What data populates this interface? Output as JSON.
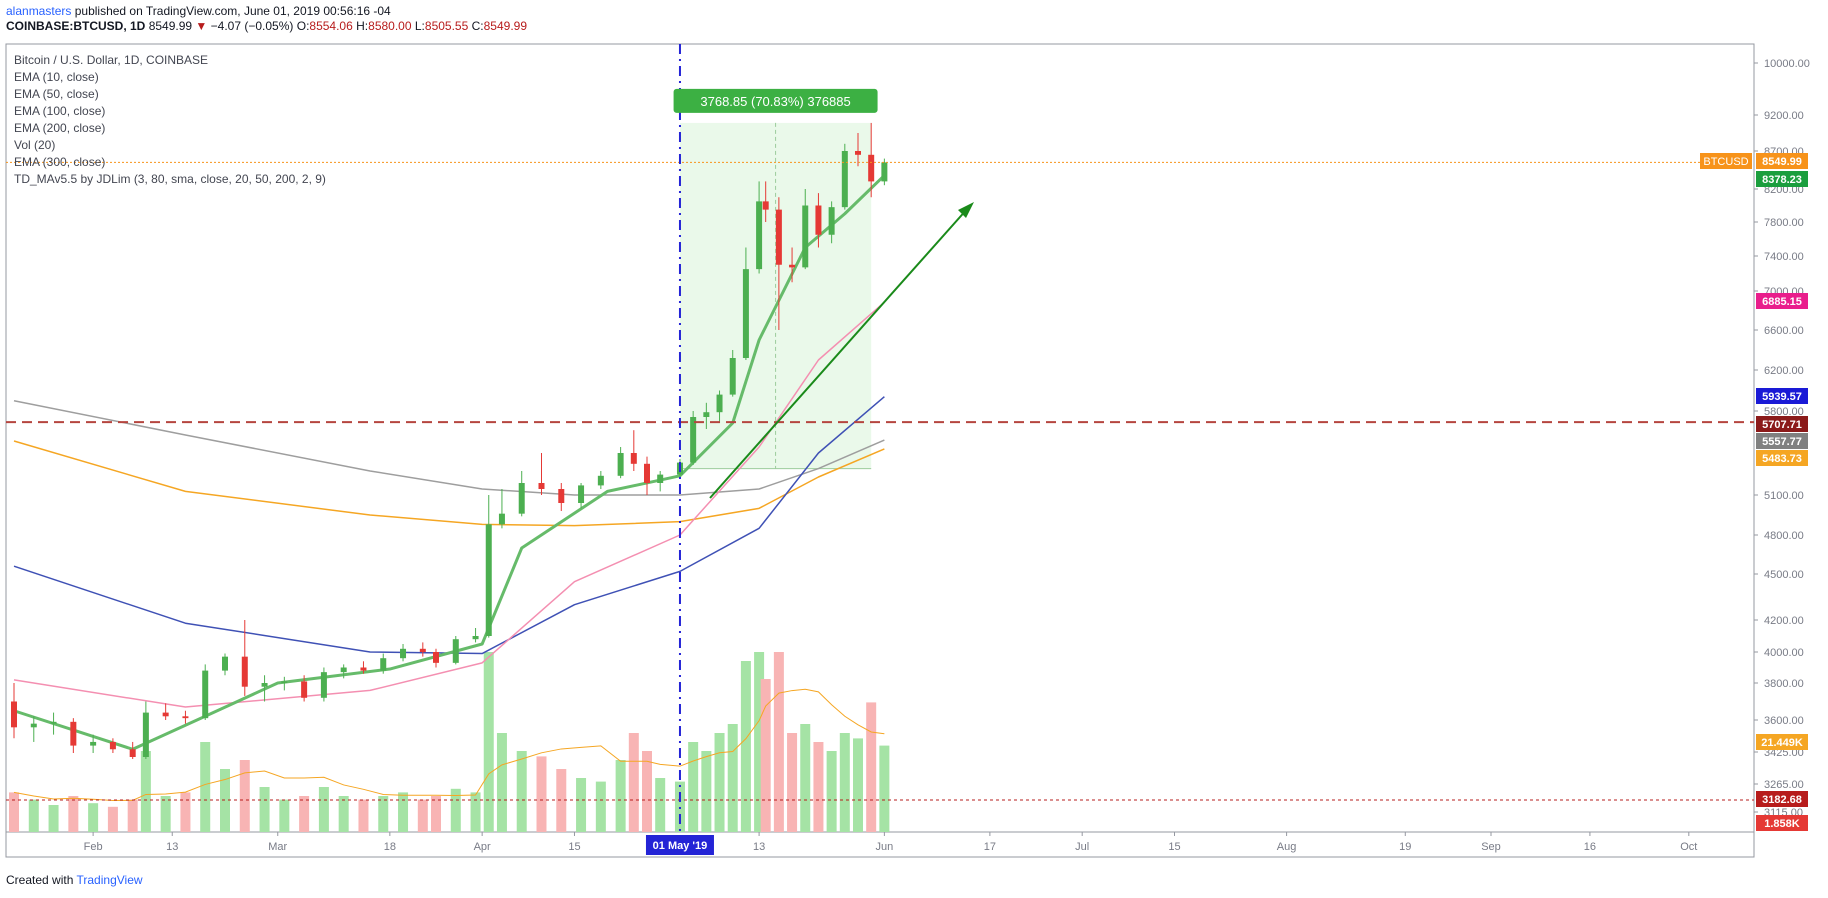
{
  "header": {
    "author": "alanmasters",
    "published_text": "published on TradingView.com, June 01, 2019 00:56:16 -04",
    "symbol": "COINBASE:BTCUSD, 1D",
    "last": "8549.99",
    "change": "−4.07 (−0.05%)",
    "o_label": "O:",
    "o": "8554.06",
    "h_label": "H:",
    "h": "8580.00",
    "l_label": "L:",
    "l": "8505.55",
    "c_label": "C:",
    "c": "8549.99"
  },
  "legend": [
    "Bitcoin / U.S. Dollar, 1D, COINBASE",
    "EMA (10, close)",
    "EMA (50, close)",
    "EMA (100, close)",
    "EMA (200, close)",
    "Vol (20)",
    "EMA (300, close)",
    "TD_MAv5.5 by JDLim (3, 80, sma, close, 20, 50, 200, 2, 9)"
  ],
  "footer": {
    "created_with": "Created with",
    "brand": "TradingView"
  },
  "colors": {
    "up": "#26a69a",
    "candle_up": "#4caf50",
    "candle_down": "#e53935",
    "ema10": "#66bb6a",
    "ema50": "#f48fb1",
    "ema100": "#3f51b5",
    "ema200": "#f5a623",
    "ema300": "#9e9e9e",
    "vol_up": "#a5e3a5",
    "vol_down": "#f8b4b4"
  },
  "chart_data": {
    "type": "candlestick",
    "y_axis_ticks": [
      10000,
      9200,
      8700,
      8200,
      7800,
      7400,
      7000,
      6600,
      6200,
      5800,
      5100,
      4800,
      4500,
      4200,
      4000,
      3800,
      3600,
      3425,
      3265,
      3115
    ],
    "y_axis_tick_labels": [
      "10000.00",
      "9200.00",
      "8700.00",
      "8200.00",
      "7800.00",
      "7400.00",
      "7000.00",
      "6600.00",
      "6200.00",
      "5800.00",
      "5100.00",
      "4800.00",
      "4500.00",
      "4200.00",
      "4000.00",
      "3800.00",
      "3600.00",
      "3425.00",
      "3265.00",
      "3115.00"
    ],
    "x_axis_ticks": [
      {
        "label": "Feb",
        "date": "2019-02-01"
      },
      {
        "label": "13",
        "date": "2019-02-13"
      },
      {
        "label": "Mar",
        "date": "2019-03-01"
      },
      {
        "label": "18",
        "date": "2019-03-18"
      },
      {
        "label": "Apr",
        "date": "2019-04-01"
      },
      {
        "label": "15",
        "date": "2019-04-15"
      },
      {
        "label": "13",
        "date": "2019-05-13"
      },
      {
        "label": "Jun",
        "date": "2019-06-01"
      },
      {
        "label": "17",
        "date": "2019-06-17"
      },
      {
        "label": "Jul",
        "date": "2019-07-01"
      },
      {
        "label": "15",
        "date": "2019-07-15"
      },
      {
        "label": "Aug",
        "date": "2019-08-01"
      },
      {
        "label": "19",
        "date": "2019-08-19"
      },
      {
        "label": "Sep",
        "date": "2019-09-01"
      },
      {
        "label": "16",
        "date": "2019-09-16"
      },
      {
        "label": "Oct",
        "date": "2019-10-01"
      }
    ],
    "x_range": [
      "2019-01-20",
      "2019-10-03"
    ],
    "highlight_date": {
      "label": "01 May '19",
      "date": "2019-05-01"
    },
    "price_labels": [
      {
        "text": "BTCUSD",
        "value": "8549.99",
        "price": 8549.99,
        "color": "#f7931a"
      },
      {
        "text": "",
        "value": "8378.23",
        "price": 8378.23,
        "color": "#1b9e3e"
      },
      {
        "text": "",
        "value": "6885.15",
        "price": 6885.15,
        "color": "#e91e8c"
      },
      {
        "text": "",
        "value": "5939.57",
        "price": 5939.57,
        "color": "#1a1ad6"
      },
      {
        "text": "",
        "value": "5707.71",
        "price": 5707.71,
        "color": "#8b1a1a"
      },
      {
        "text": "",
        "value": "5557.77",
        "price": 5557.77,
        "color": "#808080"
      },
      {
        "text": "",
        "value": "5483.73",
        "price": 5483.73,
        "color": "#f5a623"
      },
      {
        "text": "",
        "value": "21.449K",
        "price": 3490,
        "color": "#f5a623"
      },
      {
        "text": "",
        "value": "3182.68",
        "price": 3182.68,
        "color": "#b71c1c"
      },
      {
        "text": "",
        "value": "1.858K",
        "price": 3040,
        "color": "#e53935"
      }
    ],
    "measure": {
      "text": "3768.85 (70.83%) 376885",
      "from_date": "2019-05-01",
      "to_date": "2019-05-30",
      "from_price": 5320,
      "to_price": 9090
    },
    "support_line": 5707.71,
    "dotted_line": 3182.68,
    "last_price": 8549.99,
    "candles": [
      {
        "d": "2019-01-20",
        "o": 3700,
        "h": 3800,
        "l": 3500,
        "c": 3560
      },
      {
        "d": "2019-01-23",
        "o": 3560,
        "h": 3620,
        "l": 3480,
        "c": 3580
      },
      {
        "d": "2019-01-26",
        "o": 3580,
        "h": 3640,
        "l": 3520,
        "c": 3590
      },
      {
        "d": "2019-01-29",
        "o": 3590,
        "h": 3610,
        "l": 3420,
        "c": 3460
      },
      {
        "d": "2019-02-01",
        "o": 3460,
        "h": 3520,
        "l": 3420,
        "c": 3480
      },
      {
        "d": "2019-02-04",
        "o": 3480,
        "h": 3500,
        "l": 3420,
        "c": 3440
      },
      {
        "d": "2019-02-07",
        "o": 3440,
        "h": 3480,
        "l": 3390,
        "c": 3400
      },
      {
        "d": "2019-02-09",
        "o": 3400,
        "h": 3700,
        "l": 3390,
        "c": 3640
      },
      {
        "d": "2019-02-12",
        "o": 3640,
        "h": 3690,
        "l": 3600,
        "c": 3620
      },
      {
        "d": "2019-02-15",
        "o": 3620,
        "h": 3650,
        "l": 3580,
        "c": 3610
      },
      {
        "d": "2019-02-18",
        "o": 3610,
        "h": 3920,
        "l": 3600,
        "c": 3880
      },
      {
        "d": "2019-02-21",
        "o": 3880,
        "h": 3990,
        "l": 3850,
        "c": 3970
      },
      {
        "d": "2019-02-24",
        "o": 3970,
        "h": 4200,
        "l": 3730,
        "c": 3780
      },
      {
        "d": "2019-02-27",
        "o": 3780,
        "h": 3850,
        "l": 3700,
        "c": 3800
      },
      {
        "d": "2019-03-02",
        "o": 3800,
        "h": 3840,
        "l": 3760,
        "c": 3810
      },
      {
        "d": "2019-03-05",
        "o": 3810,
        "h": 3850,
        "l": 3700,
        "c": 3720
      },
      {
        "d": "2019-03-08",
        "o": 3720,
        "h": 3900,
        "l": 3700,
        "c": 3870
      },
      {
        "d": "2019-03-11",
        "o": 3870,
        "h": 3920,
        "l": 3830,
        "c": 3900
      },
      {
        "d": "2019-03-14",
        "o": 3900,
        "h": 3940,
        "l": 3860,
        "c": 3880
      },
      {
        "d": "2019-03-17",
        "o": 3880,
        "h": 3990,
        "l": 3860,
        "c": 3960
      },
      {
        "d": "2019-03-20",
        "o": 3960,
        "h": 4050,
        "l": 3940,
        "c": 4020
      },
      {
        "d": "2019-03-23",
        "o": 4020,
        "h": 4060,
        "l": 3970,
        "c": 4000
      },
      {
        "d": "2019-03-25",
        "o": 4000,
        "h": 4020,
        "l": 3900,
        "c": 3930
      },
      {
        "d": "2019-03-28",
        "o": 3930,
        "h": 4100,
        "l": 3920,
        "c": 4080
      },
      {
        "d": "2019-03-31",
        "o": 4080,
        "h": 4150,
        "l": 4060,
        "c": 4100
      },
      {
        "d": "2019-04-02",
        "o": 4100,
        "h": 5100,
        "l": 4090,
        "c": 4880
      },
      {
        "d": "2019-04-04",
        "o": 4880,
        "h": 5150,
        "l": 4850,
        "c": 4960
      },
      {
        "d": "2019-04-07",
        "o": 4960,
        "h": 5300,
        "l": 4940,
        "c": 5200
      },
      {
        "d": "2019-04-10",
        "o": 5200,
        "h": 5450,
        "l": 5100,
        "c": 5150
      },
      {
        "d": "2019-04-13",
        "o": 5150,
        "h": 5200,
        "l": 4980,
        "c": 5040
      },
      {
        "d": "2019-04-16",
        "o": 5040,
        "h": 5200,
        "l": 5000,
        "c": 5180
      },
      {
        "d": "2019-04-19",
        "o": 5180,
        "h": 5300,
        "l": 5150,
        "c": 5260
      },
      {
        "d": "2019-04-22",
        "o": 5260,
        "h": 5500,
        "l": 5240,
        "c": 5450
      },
      {
        "d": "2019-04-24",
        "o": 5450,
        "h": 5640,
        "l": 5300,
        "c": 5360
      },
      {
        "d": "2019-04-26",
        "o": 5360,
        "h": 5420,
        "l": 5100,
        "c": 5200
      },
      {
        "d": "2019-04-28",
        "o": 5200,
        "h": 5300,
        "l": 5130,
        "c": 5270
      },
      {
        "d": "2019-05-01",
        "o": 5270,
        "h": 5400,
        "l": 5250,
        "c": 5370
      },
      {
        "d": "2019-05-03",
        "o": 5370,
        "h": 5800,
        "l": 5350,
        "c": 5750
      },
      {
        "d": "2019-05-05",
        "o": 5750,
        "h": 5880,
        "l": 5650,
        "c": 5790
      },
      {
        "d": "2019-05-07",
        "o": 5790,
        "h": 6000,
        "l": 5700,
        "c": 5960
      },
      {
        "d": "2019-05-09",
        "o": 5960,
        "h": 6400,
        "l": 5940,
        "c": 6320
      },
      {
        "d": "2019-05-11",
        "o": 6320,
        "h": 7500,
        "l": 6300,
        "c": 7250
      },
      {
        "d": "2019-05-13",
        "o": 7250,
        "h": 8300,
        "l": 7200,
        "c": 8050
      },
      {
        "d": "2019-05-14",
        "o": 8050,
        "h": 8300,
        "l": 7800,
        "c": 7950
      },
      {
        "d": "2019-05-16",
        "o": 7950,
        "h": 8100,
        "l": 6600,
        "c": 7300
      },
      {
        "d": "2019-05-18",
        "o": 7300,
        "h": 7500,
        "l": 7100,
        "c": 7270
      },
      {
        "d": "2019-05-20",
        "o": 7270,
        "h": 8200,
        "l": 7250,
        "c": 8000
      },
      {
        "d": "2019-05-22",
        "o": 8000,
        "h": 8150,
        "l": 7500,
        "c": 7650
      },
      {
        "d": "2019-05-24",
        "o": 7650,
        "h": 8050,
        "l": 7550,
        "c": 7980
      },
      {
        "d": "2019-05-26",
        "o": 7980,
        "h": 8800,
        "l": 7950,
        "c": 8700
      },
      {
        "d": "2019-05-28",
        "o": 8700,
        "h": 8950,
        "l": 8500,
        "c": 8650
      },
      {
        "d": "2019-05-30",
        "o": 8650,
        "h": 9090,
        "l": 8100,
        "c": 8300
      },
      {
        "d": "2019-06-01",
        "o": 8300,
        "h": 8600,
        "l": 8250,
        "c": 8550
      }
    ],
    "ema10": [
      [
        "2019-01-20",
        3650
      ],
      [
        "2019-02-07",
        3440
      ],
      [
        "2019-02-18",
        3620
      ],
      [
        "2019-03-01",
        3800
      ],
      [
        "2019-03-18",
        3890
      ],
      [
        "2019-04-01",
        4050
      ],
      [
        "2019-04-07",
        4700
      ],
      [
        "2019-04-20",
        5130
      ],
      [
        "2019-05-01",
        5260
      ],
      [
        "2019-05-09",
        5700
      ],
      [
        "2019-05-13",
        6500
      ],
      [
        "2019-05-20",
        7500
      ],
      [
        "2019-05-26",
        7900
      ],
      [
        "2019-06-01",
        8378
      ]
    ],
    "ema50": [
      [
        "2019-01-20",
        3820
      ],
      [
        "2019-02-15",
        3670
      ],
      [
        "2019-03-15",
        3760
      ],
      [
        "2019-04-01",
        3930
      ],
      [
        "2019-04-15",
        4450
      ],
      [
        "2019-05-01",
        4800
      ],
      [
        "2019-05-13",
        5500
      ],
      [
        "2019-05-22",
        6300
      ],
      [
        "2019-06-01",
        6885
      ]
    ],
    "ema100": [
      [
        "2019-01-20",
        4560
      ],
      [
        "2019-02-15",
        4180
      ],
      [
        "2019-03-15",
        4000
      ],
      [
        "2019-04-01",
        3990
      ],
      [
        "2019-04-15",
        4300
      ],
      [
        "2019-05-01",
        4520
      ],
      [
        "2019-05-13",
        4850
      ],
      [
        "2019-05-22",
        5450
      ],
      [
        "2019-06-01",
        5940
      ]
    ],
    "ema200": [
      [
        "2019-01-20",
        5550
      ],
      [
        "2019-02-15",
        5130
      ],
      [
        "2019-03-15",
        4950
      ],
      [
        "2019-04-01",
        4880
      ],
      [
        "2019-04-15",
        4870
      ],
      [
        "2019-05-01",
        4900
      ],
      [
        "2019-05-13",
        5000
      ],
      [
        "2019-05-22",
        5250
      ],
      [
        "2019-06-01",
        5484
      ]
    ],
    "ema300": [
      [
        "2019-01-20",
        5900
      ],
      [
        "2019-02-15",
        5600
      ],
      [
        "2019-03-15",
        5300
      ],
      [
        "2019-04-01",
        5150
      ],
      [
        "2019-04-15",
        5100
      ],
      [
        "2019-05-01",
        5100
      ],
      [
        "2019-05-13",
        5150
      ],
      [
        "2019-05-22",
        5320
      ],
      [
        "2019-06-01",
        5558
      ]
    ],
    "volume": [
      {
        "d": "2019-01-20",
        "v": 0.22,
        "up": false
      },
      {
        "d": "2019-01-23",
        "v": 0.18,
        "up": true
      },
      {
        "d": "2019-01-26",
        "v": 0.15,
        "up": true
      },
      {
        "d": "2019-01-29",
        "v": 0.2,
        "up": false
      },
      {
        "d": "2019-02-01",
        "v": 0.16,
        "up": true
      },
      {
        "d": "2019-02-04",
        "v": 0.14,
        "up": false
      },
      {
        "d": "2019-02-07",
        "v": 0.18,
        "up": false
      },
      {
        "d": "2019-02-09",
        "v": 0.45,
        "up": true
      },
      {
        "d": "2019-02-12",
        "v": 0.2,
        "up": true
      },
      {
        "d": "2019-02-15",
        "v": 0.22,
        "up": false
      },
      {
        "d": "2019-02-18",
        "v": 0.5,
        "up": true
      },
      {
        "d": "2019-02-21",
        "v": 0.35,
        "up": true
      },
      {
        "d": "2019-02-24",
        "v": 0.4,
        "up": false
      },
      {
        "d": "2019-02-27",
        "v": 0.25,
        "up": true
      },
      {
        "d": "2019-03-02",
        "v": 0.18,
        "up": true
      },
      {
        "d": "2019-03-05",
        "v": 0.2,
        "up": false
      },
      {
        "d": "2019-03-08",
        "v": 0.25,
        "up": true
      },
      {
        "d": "2019-03-11",
        "v": 0.2,
        "up": true
      },
      {
        "d": "2019-03-14",
        "v": 0.18,
        "up": false
      },
      {
        "d": "2019-03-17",
        "v": 0.2,
        "up": true
      },
      {
        "d": "2019-03-20",
        "v": 0.22,
        "up": true
      },
      {
        "d": "2019-03-23",
        "v": 0.18,
        "up": false
      },
      {
        "d": "2019-03-25",
        "v": 0.2,
        "up": false
      },
      {
        "d": "2019-03-28",
        "v": 0.24,
        "up": true
      },
      {
        "d": "2019-03-31",
        "v": 0.22,
        "up": true
      },
      {
        "d": "2019-04-02",
        "v": 1.0,
        "up": true
      },
      {
        "d": "2019-04-04",
        "v": 0.55,
        "up": true
      },
      {
        "d": "2019-04-07",
        "v": 0.45,
        "up": true
      },
      {
        "d": "2019-04-10",
        "v": 0.42,
        "up": false
      },
      {
        "d": "2019-04-13",
        "v": 0.35,
        "up": false
      },
      {
        "d": "2019-04-16",
        "v": 0.3,
        "up": true
      },
      {
        "d": "2019-04-19",
        "v": 0.28,
        "up": true
      },
      {
        "d": "2019-04-22",
        "v": 0.4,
        "up": true
      },
      {
        "d": "2019-04-24",
        "v": 0.55,
        "up": false
      },
      {
        "d": "2019-04-26",
        "v": 0.45,
        "up": false
      },
      {
        "d": "2019-04-28",
        "v": 0.3,
        "up": true
      },
      {
        "d": "2019-05-01",
        "v": 0.28,
        "up": true
      },
      {
        "d": "2019-05-03",
        "v": 0.5,
        "up": true
      },
      {
        "d": "2019-05-05",
        "v": 0.45,
        "up": true
      },
      {
        "d": "2019-05-07",
        "v": 0.55,
        "up": true
      },
      {
        "d": "2019-05-09",
        "v": 0.6,
        "up": true
      },
      {
        "d": "2019-05-11",
        "v": 0.95,
        "up": true
      },
      {
        "d": "2019-05-13",
        "v": 1.0,
        "up": true
      },
      {
        "d": "2019-05-14",
        "v": 0.85,
        "up": false
      },
      {
        "d": "2019-05-16",
        "v": 1.0,
        "up": false
      },
      {
        "d": "2019-05-18",
        "v": 0.55,
        "up": false
      },
      {
        "d": "2019-05-20",
        "v": 0.6,
        "up": true
      },
      {
        "d": "2019-05-22",
        "v": 0.5,
        "up": false
      },
      {
        "d": "2019-05-24",
        "v": 0.45,
        "up": true
      },
      {
        "d": "2019-05-26",
        "v": 0.55,
        "up": true
      },
      {
        "d": "2019-05-28",
        "v": 0.52,
        "up": true
      },
      {
        "d": "2019-05-30",
        "v": 0.72,
        "up": false
      },
      {
        "d": "2019-06-01",
        "v": 0.48,
        "up": true
      }
    ]
  }
}
